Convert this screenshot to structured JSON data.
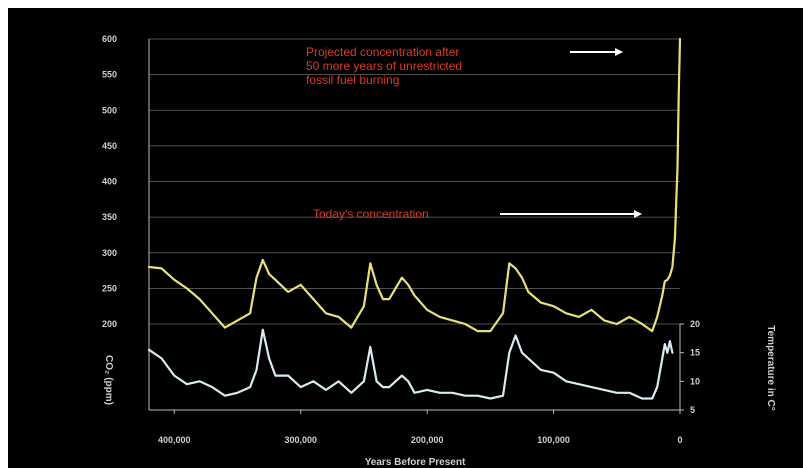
{
  "chart_data": {
    "type": "line",
    "xlabel": "Years Before Present",
    "ylabel_left": "CO₂ (ppm)",
    "ylabel_right": "Temperature in C°",
    "x_ticks": [
      "400,000",
      "300,000",
      "200,000",
      "100,000",
      "0"
    ],
    "x_tick_values": [
      400000,
      300000,
      200000,
      100000,
      0
    ],
    "xlim": [
      420000,
      0
    ],
    "y_ticks_left": [
      "600",
      "550",
      "500",
      "450",
      "400",
      "350",
      "300",
      "250",
      "200"
    ],
    "ylim_left": [
      200,
      600
    ],
    "y_ticks_right": [
      "20",
      "15",
      "10",
      "5"
    ],
    "ylim_right": [
      5,
      20
    ],
    "grid": true,
    "annotations": [
      {
        "text_lines": [
          "Projected concentration after",
          "50 more years of unrestricted",
          "fossil fuel burning"
        ],
        "arrow_to_x": 45000,
        "arrow_to_y": 600
      },
      {
        "text_lines": [
          "Today's concentration"
        ],
        "arrow_to_x": 30000,
        "arrow_to_y": 380
      }
    ],
    "series": [
      {
        "color": "#e8e07a",
        "x": [
          420000,
          410000,
          400000,
          390000,
          380000,
          370000,
          360000,
          350000,
          340000,
          335000,
          330000,
          325000,
          320000,
          310000,
          300000,
          290000,
          280000,
          270000,
          260000,
          250000,
          245000,
          240000,
          235000,
          230000,
          220000,
          215000,
          210000,
          200000,
          190000,
          180000,
          170000,
          160000,
          150000,
          140000,
          135000,
          130000,
          125000,
          120000,
          110000,
          100000,
          90000,
          80000,
          70000,
          60000,
          50000,
          40000,
          30000,
          22000,
          18000,
          14000,
          12000,
          10000,
          8000,
          6000,
          4000,
          2000,
          1000,
          0
        ],
        "values": [
          280,
          278,
          262,
          250,
          235,
          215,
          195,
          205,
          215,
          265,
          290,
          270,
          262,
          245,
          255,
          235,
          215,
          210,
          195,
          225,
          285,
          255,
          235,
          235,
          265,
          255,
          240,
          220,
          210,
          205,
          200,
          190,
          190,
          215,
          285,
          278,
          265,
          245,
          230,
          225,
          215,
          210,
          220,
          205,
          200,
          210,
          200,
          190,
          210,
          240,
          260,
          262,
          268,
          280,
          320,
          420,
          520,
          600
        ]
      },
      {
        "color": "#d6ecf0",
        "x": [
          420000,
          410000,
          400000,
          390000,
          380000,
          370000,
          360000,
          350000,
          340000,
          335000,
          330000,
          325000,
          320000,
          310000,
          300000,
          290000,
          280000,
          270000,
          260000,
          250000,
          245000,
          240000,
          235000,
          230000,
          220000,
          215000,
          210000,
          200000,
          190000,
          180000,
          170000,
          160000,
          150000,
          140000,
          135000,
          130000,
          125000,
          120000,
          110000,
          100000,
          90000,
          80000,
          70000,
          60000,
          50000,
          40000,
          30000,
          22000,
          18000,
          14000,
          12000,
          10000,
          8000,
          6000
        ],
        "values": [
          15.5,
          14,
          11,
          9.5,
          10,
          9,
          7.5,
          8,
          9,
          12,
          19,
          14,
          11,
          11,
          9,
          10,
          8.5,
          10,
          8,
          10,
          16,
          10,
          9,
          9,
          11,
          10,
          8,
          8.5,
          8,
          8,
          7.5,
          7.5,
          7,
          7.5,
          15,
          18,
          15,
          14,
          12,
          11.5,
          10,
          9.5,
          9,
          8.5,
          8,
          8,
          7,
          7,
          9,
          14,
          16.5,
          15,
          17,
          15
        ]
      }
    ]
  }
}
